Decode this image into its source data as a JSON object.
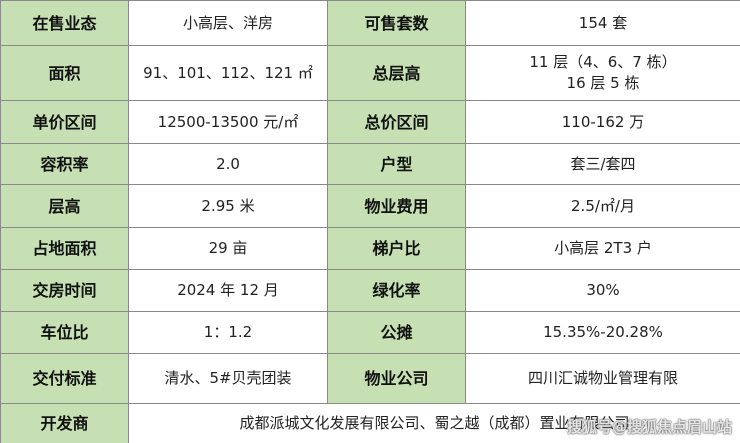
{
  "rows": [
    [
      "在售业态",
      "小高层、洋房",
      "可售套数",
      "154 套"
    ],
    [
      "面积",
      "91、101、112、121 ㎡",
      "总层高",
      "11 层（4、6、7 栋）",
      "16 层 5 栋"
    ],
    [
      "单价区间",
      "12500-13500 元/㎡",
      "总价区间",
      "110-162 万"
    ],
    [
      "容积率",
      "2.0",
      "户型",
      "套三/套四"
    ],
    [
      "层高",
      "2.95 米",
      "物业费用",
      "2.5/㎡/月"
    ],
    [
      "占地面积",
      "29 亩",
      "梯户比",
      "小高层 2T3 户"
    ],
    [
      "交房时间",
      "2024 年 12 月",
      "绿化率",
      "30%"
    ],
    [
      "车位比",
      "1：1.2",
      "公摊",
      "15.35%-20.28%"
    ],
    [
      "交付标准",
      "清水、5#贝壳团装",
      "物业公司",
      "四川汇诚物业管理有限"
    ]
  ],
  "developer": {
    "label": "开发商",
    "value": "成都派城文化发展有限公司、蜀之越（成都）置业有限公司"
  },
  "watermark": "搜狐号@搜狐焦点眉山站",
  "colors": {
    "header_bg": "#c6e0b4",
    "border": "#8a8a8a"
  }
}
